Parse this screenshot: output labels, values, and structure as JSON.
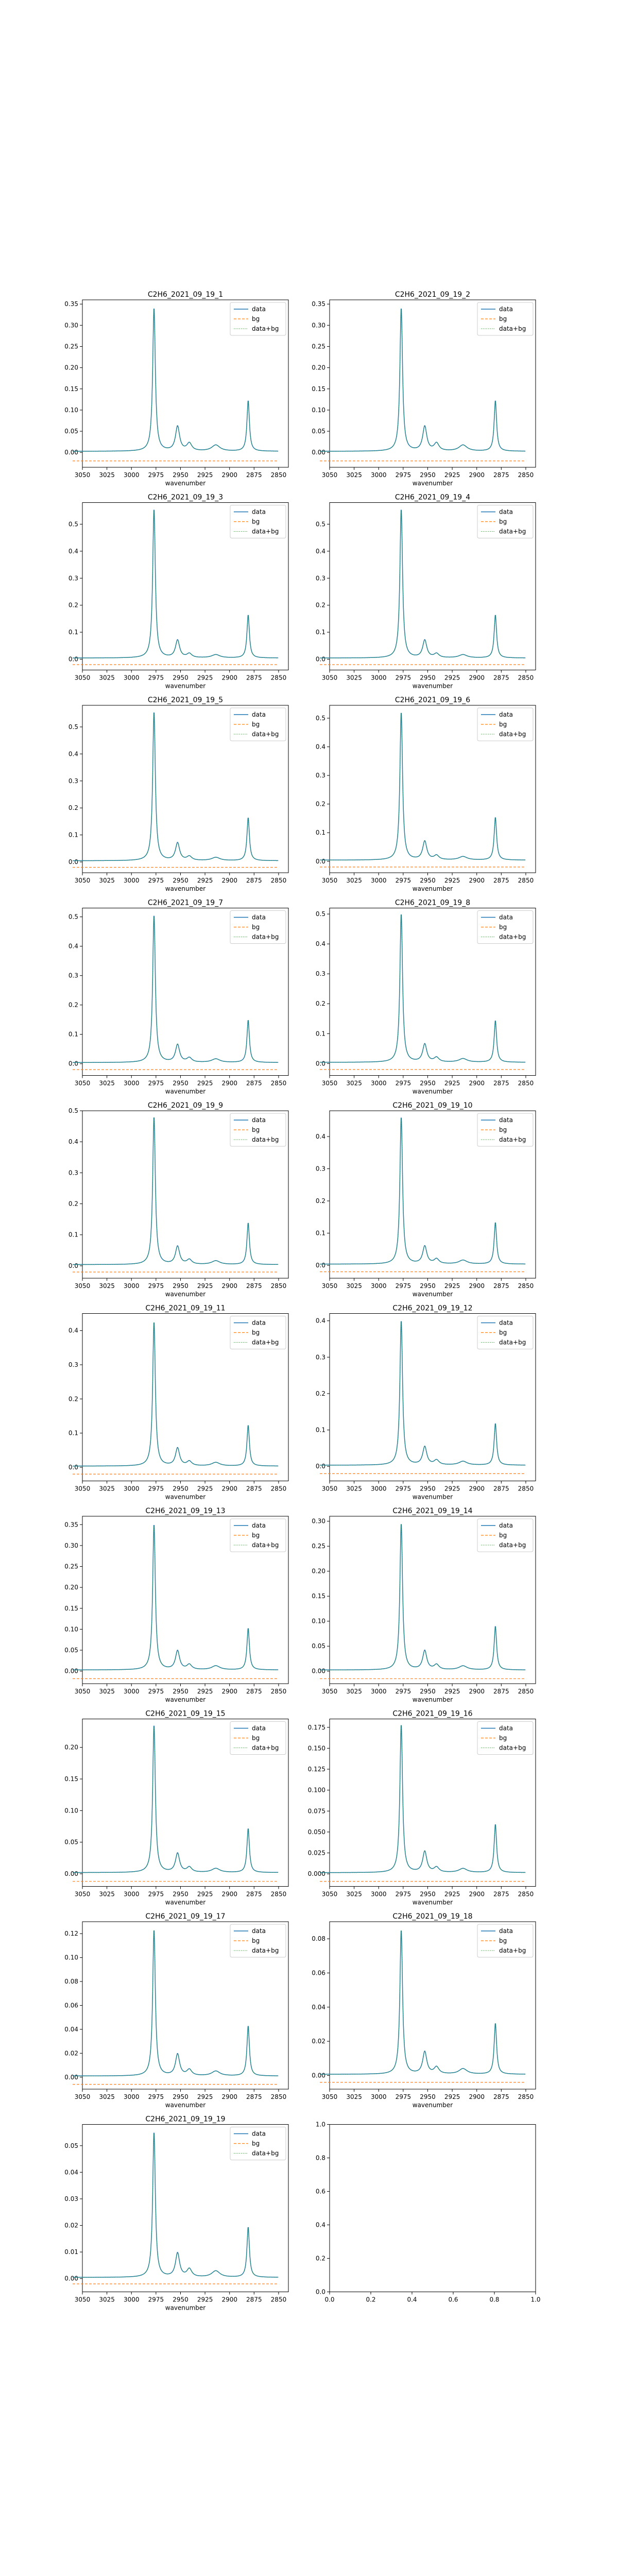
{
  "figure": {
    "ncols": 2,
    "nrows": 10
  },
  "colors": {
    "data": "#1f77b4",
    "bg": "#ff7f0e",
    "data_bg": "#2ca02c",
    "axes": "#000000"
  },
  "chart_data": [
    {
      "type": "line",
      "title": "C2H6_2021_09_19_1",
      "xlabel": "wavenumber",
      "x_ticks": [
        3050,
        3025,
        3000,
        2975,
        2950,
        2925,
        2900,
        2875,
        2850
      ],
      "xlim": [
        3050,
        2840
      ],
      "y_ticks": [
        0.0,
        0.05,
        0.1,
        0.15,
        0.2,
        0.25,
        0.3,
        0.35
      ],
      "ylim": [
        -0.035,
        0.36
      ],
      "peaks": [
        0.34,
        0.058,
        0.018,
        0.12
      ],
      "bg_level": -0.02,
      "legend": [
        "data",
        "bg",
        "data+bg"
      ],
      "legend_loc": "upper right"
    },
    {
      "type": "line",
      "title": "C2H6_2021_09_19_2",
      "xlabel": "wavenumber",
      "x_ticks": [
        3050,
        3025,
        3000,
        2975,
        2950,
        2925,
        2900,
        2875,
        2850
      ],
      "xlim": [
        3050,
        2840
      ],
      "y_ticks": [
        0.0,
        0.05,
        0.1,
        0.15,
        0.2,
        0.25,
        0.3,
        0.35
      ],
      "ylim": [
        -0.035,
        0.36
      ],
      "peaks": [
        0.34,
        0.058,
        0.018,
        0.12
      ],
      "bg_level": -0.02,
      "legend": [
        "data",
        "bg",
        "data+bg"
      ],
      "legend_loc": "upper right"
    },
    {
      "type": "line",
      "title": "C2H6_2021_09_19_3",
      "xlabel": "wavenumber",
      "x_ticks": [
        3050,
        3025,
        3000,
        2975,
        2950,
        2925,
        2900,
        2875,
        2850
      ],
      "xlim": [
        3050,
        2840
      ],
      "y_ticks": [
        0.0,
        0.1,
        0.2,
        0.3,
        0.4,
        0.5
      ],
      "ylim": [
        -0.04,
        0.58
      ],
      "peaks": [
        0.555,
        0.065,
        0.015,
        0.16
      ],
      "bg_level": -0.02,
      "legend": [
        "data",
        "bg",
        "data+bg"
      ],
      "legend_loc": "upper right"
    },
    {
      "type": "line",
      "title": "C2H6_2021_09_19_4",
      "xlabel": "wavenumber",
      "x_ticks": [
        3050,
        3025,
        3000,
        2975,
        2950,
        2925,
        2900,
        2875,
        2850
      ],
      "xlim": [
        3050,
        2840
      ],
      "y_ticks": [
        0.0,
        0.1,
        0.2,
        0.3,
        0.4,
        0.5
      ],
      "ylim": [
        -0.04,
        0.58
      ],
      "peaks": [
        0.555,
        0.065,
        0.015,
        0.16
      ],
      "bg_level": -0.02,
      "legend": [
        "data",
        "bg",
        "data+bg"
      ],
      "legend_loc": "upper right"
    },
    {
      "type": "line",
      "title": "C2H6_2021_09_19_5",
      "xlabel": "wavenumber",
      "x_ticks": [
        3050,
        3025,
        3000,
        2975,
        2950,
        2925,
        2900,
        2875,
        2850
      ],
      "xlim": [
        3050,
        2840
      ],
      "y_ticks": [
        0.0,
        0.1,
        0.2,
        0.3,
        0.4,
        0.5
      ],
      "ylim": [
        -0.04,
        0.58
      ],
      "peaks": [
        0.555,
        0.065,
        0.015,
        0.16
      ],
      "bg_level": -0.02,
      "legend": [
        "data",
        "bg",
        "data+bg"
      ],
      "legend_loc": "upper right"
    },
    {
      "type": "line",
      "title": "C2H6_2021_09_19_6",
      "xlabel": "wavenumber",
      "x_ticks": [
        3050,
        3025,
        3000,
        2975,
        2950,
        2925,
        2900,
        2875,
        2850
      ],
      "xlim": [
        3050,
        2840
      ],
      "y_ticks": [
        0.0,
        0.1,
        0.2,
        0.3,
        0.4,
        0.5
      ],
      "ylim": [
        -0.04,
        0.545
      ],
      "peaks": [
        0.52,
        0.065,
        0.015,
        0.15
      ],
      "bg_level": -0.02,
      "legend": [
        "data",
        "bg",
        "data+bg"
      ],
      "legend_loc": "upper right"
    },
    {
      "type": "line",
      "title": "C2H6_2021_09_19_7",
      "xlabel": "wavenumber",
      "x_ticks": [
        3050,
        3025,
        3000,
        2975,
        2950,
        2925,
        2900,
        2875,
        2850
      ],
      "xlim": [
        3050,
        2840
      ],
      "y_ticks": [
        0.0,
        0.1,
        0.2,
        0.3,
        0.4,
        0.5
      ],
      "ylim": [
        -0.04,
        0.53
      ],
      "peaks": [
        0.505,
        0.06,
        0.015,
        0.145
      ],
      "bg_level": -0.02,
      "legend": [
        "data",
        "bg",
        "data+bg"
      ],
      "legend_loc": "upper right"
    },
    {
      "type": "line",
      "title": "C2H6_2021_09_19_8",
      "xlabel": "wavenumber",
      "x_ticks": [
        3050,
        3025,
        3000,
        2975,
        2950,
        2925,
        2900,
        2875,
        2850
      ],
      "xlim": [
        3050,
        2840
      ],
      "y_ticks": [
        0.0,
        0.1,
        0.2,
        0.3,
        0.4,
        0.5
      ],
      "ylim": [
        -0.04,
        0.52
      ],
      "peaks": [
        0.5,
        0.06,
        0.015,
        0.14
      ],
      "bg_level": -0.02,
      "legend": [
        "data",
        "bg",
        "data+bg"
      ],
      "legend_loc": "upper right"
    },
    {
      "type": "line",
      "title": "C2H6_2021_09_19_9",
      "xlabel": "wavenumber",
      "x_ticks": [
        3050,
        3025,
        3000,
        2975,
        2950,
        2925,
        2900,
        2875,
        2850
      ],
      "xlim": [
        3050,
        2840
      ],
      "y_ticks": [
        0.0,
        0.1,
        0.2,
        0.3,
        0.4,
        0.5
      ],
      "ylim": [
        -0.04,
        0.5
      ],
      "peaks": [
        0.48,
        0.058,
        0.015,
        0.135
      ],
      "bg_level": -0.02,
      "legend": [
        "data",
        "bg",
        "data+bg"
      ],
      "legend_loc": "upper right"
    },
    {
      "type": "line",
      "title": "C2H6_2021_09_19_10",
      "xlabel": "wavenumber",
      "x_ticks": [
        3050,
        3025,
        3000,
        2975,
        2950,
        2925,
        2900,
        2875,
        2850
      ],
      "xlim": [
        3050,
        2840
      ],
      "y_ticks": [
        0.0,
        0.1,
        0.2,
        0.3,
        0.4
      ],
      "ylim": [
        -0.04,
        0.48
      ],
      "peaks": [
        0.46,
        0.055,
        0.015,
        0.13
      ],
      "bg_level": -0.02,
      "legend": [
        "data",
        "bg",
        "data+bg"
      ],
      "legend_loc": "upper right"
    },
    {
      "type": "line",
      "title": "C2H6_2021_09_19_11",
      "xlabel": "wavenumber",
      "x_ticks": [
        3050,
        3025,
        3000,
        2975,
        2950,
        2925,
        2900,
        2875,
        2850
      ],
      "xlim": [
        3050,
        2840
      ],
      "y_ticks": [
        0.0,
        0.1,
        0.2,
        0.3,
        0.4
      ],
      "ylim": [
        -0.04,
        0.45
      ],
      "peaks": [
        0.425,
        0.052,
        0.013,
        0.12
      ],
      "bg_level": -0.02,
      "legend": [
        "data",
        "bg",
        "data+bg"
      ],
      "legend_loc": "upper right"
    },
    {
      "type": "line",
      "title": "C2H6_2021_09_19_12",
      "xlabel": "wavenumber",
      "x_ticks": [
        3050,
        3025,
        3000,
        2975,
        2950,
        2925,
        2900,
        2875,
        2850
      ],
      "xlim": [
        3050,
        2840
      ],
      "y_ticks": [
        0.0,
        0.1,
        0.2,
        0.3,
        0.4
      ],
      "ylim": [
        -0.04,
        0.42
      ],
      "peaks": [
        0.4,
        0.05,
        0.013,
        0.115
      ],
      "bg_level": -0.02,
      "legend": [
        "data",
        "bg",
        "data+bg"
      ],
      "legend_loc": "upper right"
    },
    {
      "type": "line",
      "title": "C2H6_2021_09_19_13",
      "xlabel": "wavenumber",
      "x_ticks": [
        3050,
        3025,
        3000,
        2975,
        2950,
        2925,
        2900,
        2875,
        2850
      ],
      "xlim": [
        3050,
        2840
      ],
      "y_ticks": [
        0.0,
        0.05,
        0.1,
        0.15,
        0.2,
        0.25,
        0.3,
        0.35
      ],
      "ylim": [
        -0.03,
        0.37
      ],
      "peaks": [
        0.35,
        0.045,
        0.012,
        0.1
      ],
      "bg_level": -0.018,
      "legend": [
        "data",
        "bg",
        "data+bg"
      ],
      "legend_loc": "upper right"
    },
    {
      "type": "line",
      "title": "C2H6_2021_09_19_14",
      "xlabel": "wavenumber",
      "x_ticks": [
        3050,
        3025,
        3000,
        2975,
        2950,
        2925,
        2900,
        2875,
        2850
      ],
      "xlim": [
        3050,
        2840
      ],
      "y_ticks": [
        0.0,
        0.05,
        0.1,
        0.15,
        0.2,
        0.25,
        0.3
      ],
      "ylim": [
        -0.025,
        0.31
      ],
      "peaks": [
        0.295,
        0.038,
        0.01,
        0.088
      ],
      "bg_level": -0.015,
      "legend": [
        "data",
        "bg",
        "data+bg"
      ],
      "legend_loc": "upper right"
    },
    {
      "type": "line",
      "title": "C2H6_2021_09_19_15",
      "xlabel": "wavenumber",
      "x_ticks": [
        3050,
        3025,
        3000,
        2975,
        2950,
        2925,
        2900,
        2875,
        2850
      ],
      "xlim": [
        3050,
        2840
      ],
      "y_ticks": [
        0.0,
        0.05,
        0.1,
        0.15,
        0.2
      ],
      "ylim": [
        -0.02,
        0.245
      ],
      "peaks": [
        0.235,
        0.03,
        0.008,
        0.07
      ],
      "bg_level": -0.012,
      "legend": [
        "data",
        "bg",
        "data+bg"
      ],
      "legend_loc": "upper right"
    },
    {
      "type": "line",
      "title": "C2H6_2021_09_19_16",
      "xlabel": "wavenumber",
      "x_ticks": [
        3050,
        3025,
        3000,
        2975,
        2950,
        2925,
        2900,
        2875,
        2850
      ],
      "xlim": [
        3050,
        2840
      ],
      "y_ticks": [
        0.0,
        0.025,
        0.05,
        0.075,
        0.1,
        0.125,
        0.15,
        0.175
      ],
      "ylim": [
        -0.015,
        0.185
      ],
      "peaks": [
        0.178,
        0.025,
        0.006,
        0.058
      ],
      "bg_level": -0.009,
      "legend": [
        "data",
        "bg",
        "data+bg"
      ],
      "legend_loc": "upper right"
    },
    {
      "type": "line",
      "title": "C2H6_2021_09_19_17",
      "xlabel": "wavenumber",
      "x_ticks": [
        3050,
        3025,
        3000,
        2975,
        2950,
        2925,
        2900,
        2875,
        2850
      ],
      "xlim": [
        3050,
        2840
      ],
      "y_ticks": [
        0.0,
        0.02,
        0.04,
        0.06,
        0.08,
        0.1,
        0.12
      ],
      "ylim": [
        -0.01,
        0.13
      ],
      "peaks": [
        0.123,
        0.018,
        0.005,
        0.042
      ],
      "bg_level": -0.006,
      "legend": [
        "data",
        "bg",
        "data+bg"
      ],
      "legend_loc": "upper right"
    },
    {
      "type": "line",
      "title": "C2H6_2021_09_19_18",
      "xlabel": "wavenumber",
      "x_ticks": [
        3050,
        3025,
        3000,
        2975,
        2950,
        2925,
        2900,
        2875,
        2850
      ],
      "xlim": [
        3050,
        2840
      ],
      "y_ticks": [
        0.0,
        0.02,
        0.04,
        0.06,
        0.08
      ],
      "ylim": [
        -0.008,
        0.09
      ],
      "peaks": [
        0.085,
        0.013,
        0.004,
        0.03
      ],
      "bg_level": -0.004,
      "legend": [
        "data",
        "bg",
        "data+bg"
      ],
      "legend_loc": "upper right"
    },
    {
      "type": "line",
      "title": "C2H6_2021_09_19_19",
      "xlabel": "wavenumber",
      "x_ticks": [
        3050,
        3025,
        3000,
        2975,
        2950,
        2925,
        2900,
        2875,
        2850
      ],
      "xlim": [
        3050,
        2840
      ],
      "y_ticks": [
        0.0,
        0.01,
        0.02,
        0.03,
        0.04,
        0.05
      ],
      "ylim": [
        -0.005,
        0.058
      ],
      "peaks": [
        0.055,
        0.009,
        0.003,
        0.019
      ],
      "bg_level": -0.002,
      "legend": [
        "data",
        "bg",
        "data+bg"
      ],
      "legend_loc": "upper right"
    },
    {
      "type": "line",
      "title": "",
      "xlabel": "",
      "x_ticks": [
        "0.0",
        "0.2",
        "0.4",
        "0.6",
        "0.8",
        "1.0"
      ],
      "xlim": [
        0,
        1
      ],
      "y_ticks": [
        "0.0",
        "0.2",
        "0.4",
        "0.6",
        "0.8",
        "1.0"
      ],
      "ylim": [
        0,
        1
      ],
      "empty": true
    }
  ]
}
